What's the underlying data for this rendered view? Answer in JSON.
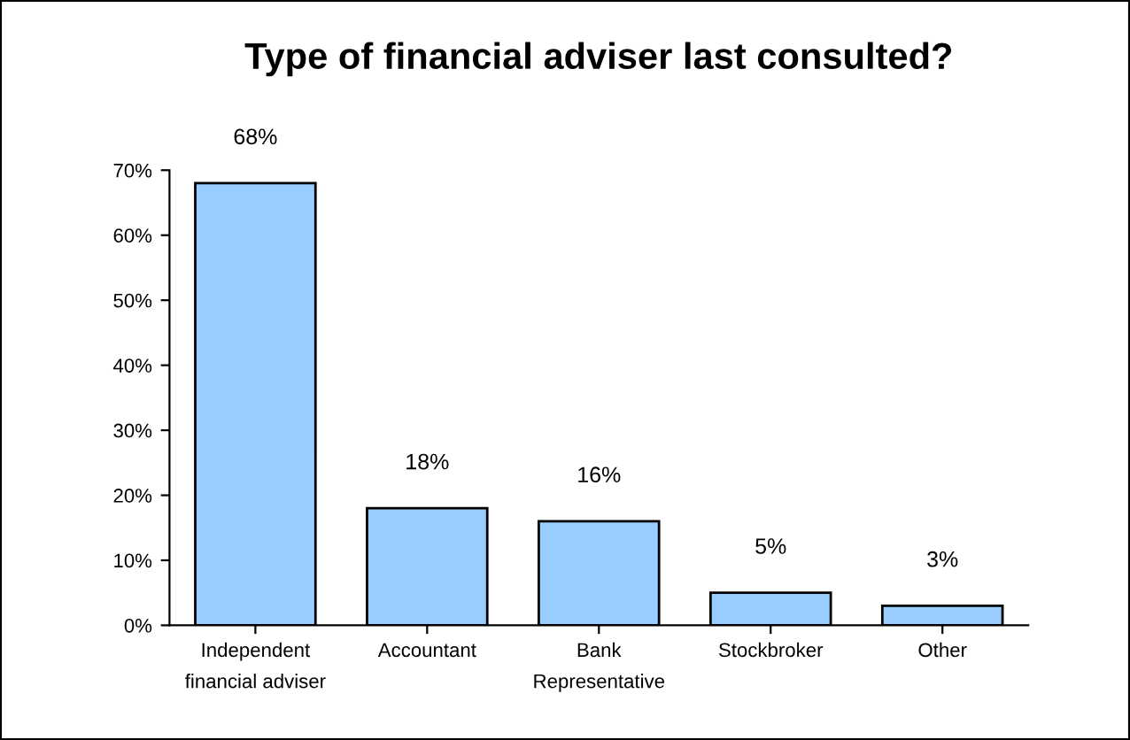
{
  "chart_data": {
    "type": "bar",
    "title": "Type of financial adviser last consulted?",
    "categories": [
      "Independent\nfinancial adviser",
      "Accountant",
      "Bank\nRepresentative",
      "Stockbroker",
      "Other"
    ],
    "values": [
      68,
      18,
      16,
      5,
      3
    ],
    "value_labels": [
      "68%",
      "18%",
      "16%",
      "5%",
      "3%"
    ],
    "color": "#99ccff",
    "ylim": [
      0,
      70
    ],
    "yticks": [
      {
        "value": 0,
        "label": "0%"
      },
      {
        "value": 10,
        "label": "10%"
      },
      {
        "value": 20,
        "label": "20%"
      },
      {
        "value": 30,
        "label": "30%"
      },
      {
        "value": 40,
        "label": "40%"
      },
      {
        "value": 50,
        "label": "50%"
      },
      {
        "value": 60,
        "label": "60%"
      },
      {
        "value": 70,
        "label": "70%"
      }
    ],
    "grid": false
  }
}
